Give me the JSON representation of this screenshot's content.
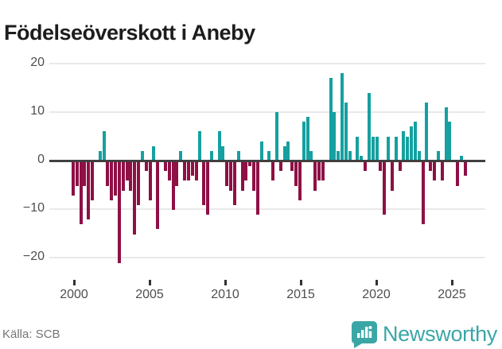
{
  "title": "Födelseöverskott i Aneby",
  "footer": {
    "source": "Källa: SCB"
  },
  "logo": {
    "wordmark": "Newsworthy",
    "color": "#3ba6a6"
  },
  "chart_data": {
    "type": "bar",
    "title": "Födelseöverskott i Aneby",
    "frequency": "quarterly",
    "start_period": "2000Q1",
    "end_period": "2025Q3",
    "ylabel": "",
    "xlabel": "",
    "ylim": [
      -23,
      21
    ],
    "grid": true,
    "y_ticks": [
      {
        "value": 20,
        "label": "20"
      },
      {
        "value": 10,
        "label": "10"
      },
      {
        "value": 0,
        "label": "0"
      },
      {
        "value": -10,
        "label": "−10"
      },
      {
        "value": -20,
        "label": "−20"
      }
    ],
    "x_ticks": [
      {
        "year": 2000,
        "label": "2000"
      },
      {
        "year": 2005,
        "label": "2005"
      },
      {
        "year": 2010,
        "label": "2010"
      },
      {
        "year": 2015,
        "label": "2015"
      },
      {
        "year": 2020,
        "label": "2020"
      },
      {
        "year": 2025,
        "label": "2025"
      }
    ],
    "positive_color": "#16a0a0",
    "negative_color": "#8e1045",
    "values": [
      -7,
      -5,
      -13,
      -5,
      -12,
      -8,
      0,
      2,
      6,
      -5,
      -8,
      -7,
      -21,
      -6,
      -4,
      -6,
      -15,
      -9,
      2,
      -2,
      -8,
      3,
      -14,
      0,
      -2,
      -4,
      -10,
      -5,
      2,
      -4,
      -4,
      -3,
      -4,
      6,
      -9,
      -11,
      2,
      0,
      6,
      3,
      -5,
      -6,
      -9,
      2,
      -6,
      -4,
      -1,
      -6,
      -11,
      4,
      0,
      2,
      -4,
      10,
      -2,
      3,
      4,
      -2,
      -5,
      -8,
      8,
      9,
      2,
      -6,
      -4,
      -4,
      0,
      17,
      10,
      2,
      18,
      12,
      2,
      0,
      5,
      1,
      -2,
      14,
      5,
      5,
      -2,
      -11,
      5,
      -6,
      5,
      -2,
      6,
      5,
      7,
      8,
      2,
      -13,
      12,
      -2,
      -4,
      2,
      -4,
      11,
      8,
      0,
      -5,
      1,
      -3
    ]
  }
}
